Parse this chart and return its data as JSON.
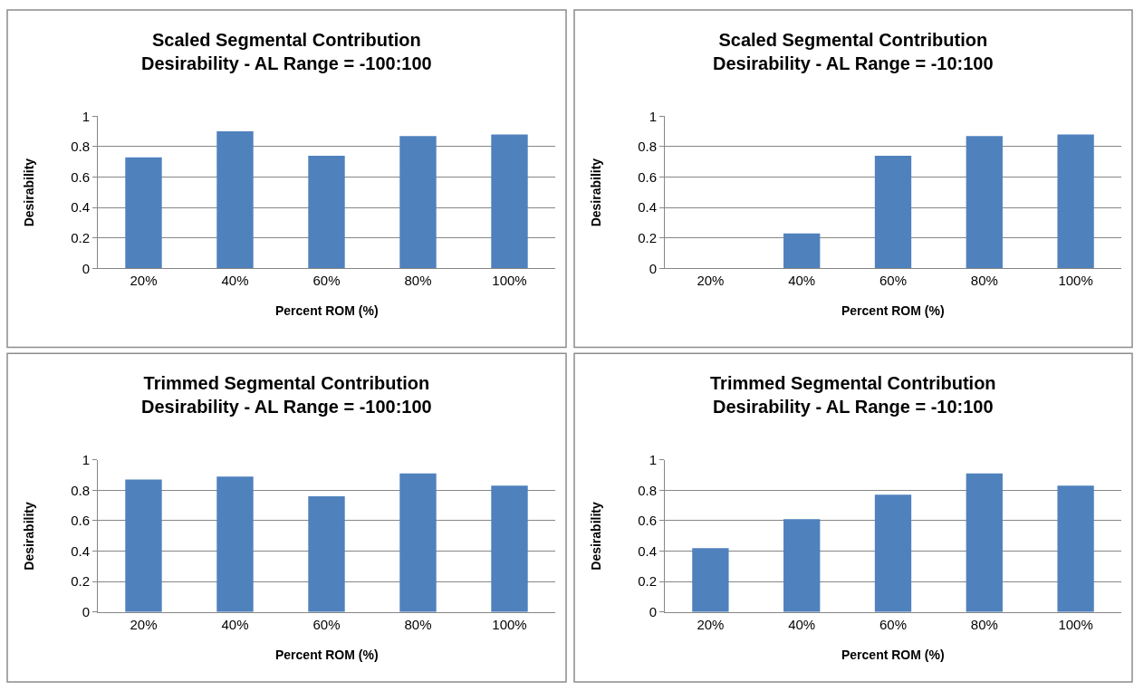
{
  "chart_data": [
    {
      "type": "bar",
      "title": "Scaled Segmental Contribution\nDesirability - AL Range = -100:100",
      "xlabel": "Percent ROM (%)",
      "ylabel": "Desirability",
      "categories": [
        "20%",
        "40%",
        "60%",
        "80%",
        "100%"
      ],
      "values": [
        0.73,
        0.9,
        0.74,
        0.87,
        0.88
      ],
      "color": "#4f81bd",
      "ylim": [
        0,
        1
      ],
      "yticks": [
        0,
        0.2,
        0.4,
        0.6,
        0.8,
        1
      ],
      "grid": "y"
    },
    {
      "type": "bar",
      "title": "Scaled Segmental Contribution\nDesirability - AL Range = -10:100",
      "xlabel": "Percent ROM (%)",
      "ylabel": "Desirability",
      "categories": [
        "20%",
        "40%",
        "60%",
        "80%",
        "100%"
      ],
      "values": [
        0,
        0.23,
        0.74,
        0.87,
        0.88
      ],
      "color": "#4f81bd",
      "ylim": [
        0,
        1
      ],
      "yticks": [
        0,
        0.2,
        0.4,
        0.6,
        0.8,
        1
      ],
      "grid": "y"
    },
    {
      "type": "bar",
      "title": "Trimmed Segmental Contribution\nDesirability - AL Range = -100:100",
      "xlabel": "Percent ROM (%)",
      "ylabel": "Desirability",
      "categories": [
        "20%",
        "40%",
        "60%",
        "80%",
        "100%"
      ],
      "values": [
        0.87,
        0.89,
        0.76,
        0.91,
        0.83
      ],
      "color": "#4f81bd",
      "ylim": [
        0,
        1
      ],
      "yticks": [
        0,
        0.2,
        0.4,
        0.6,
        0.8,
        1
      ],
      "grid": "y"
    },
    {
      "type": "bar",
      "title": "Trimmed Segmental Contribution\nDesirability - AL Range = -10:100",
      "xlabel": "Percent ROM (%)",
      "ylabel": "Desirability",
      "categories": [
        "20%",
        "40%",
        "60%",
        "80%",
        "100%"
      ],
      "values": [
        0.42,
        0.61,
        0.77,
        0.91,
        0.83
      ],
      "color": "#4f81bd",
      "ylim": [
        0,
        1
      ],
      "yticks": [
        0,
        0.2,
        0.4,
        0.6,
        0.8,
        1
      ],
      "grid": "y"
    }
  ]
}
